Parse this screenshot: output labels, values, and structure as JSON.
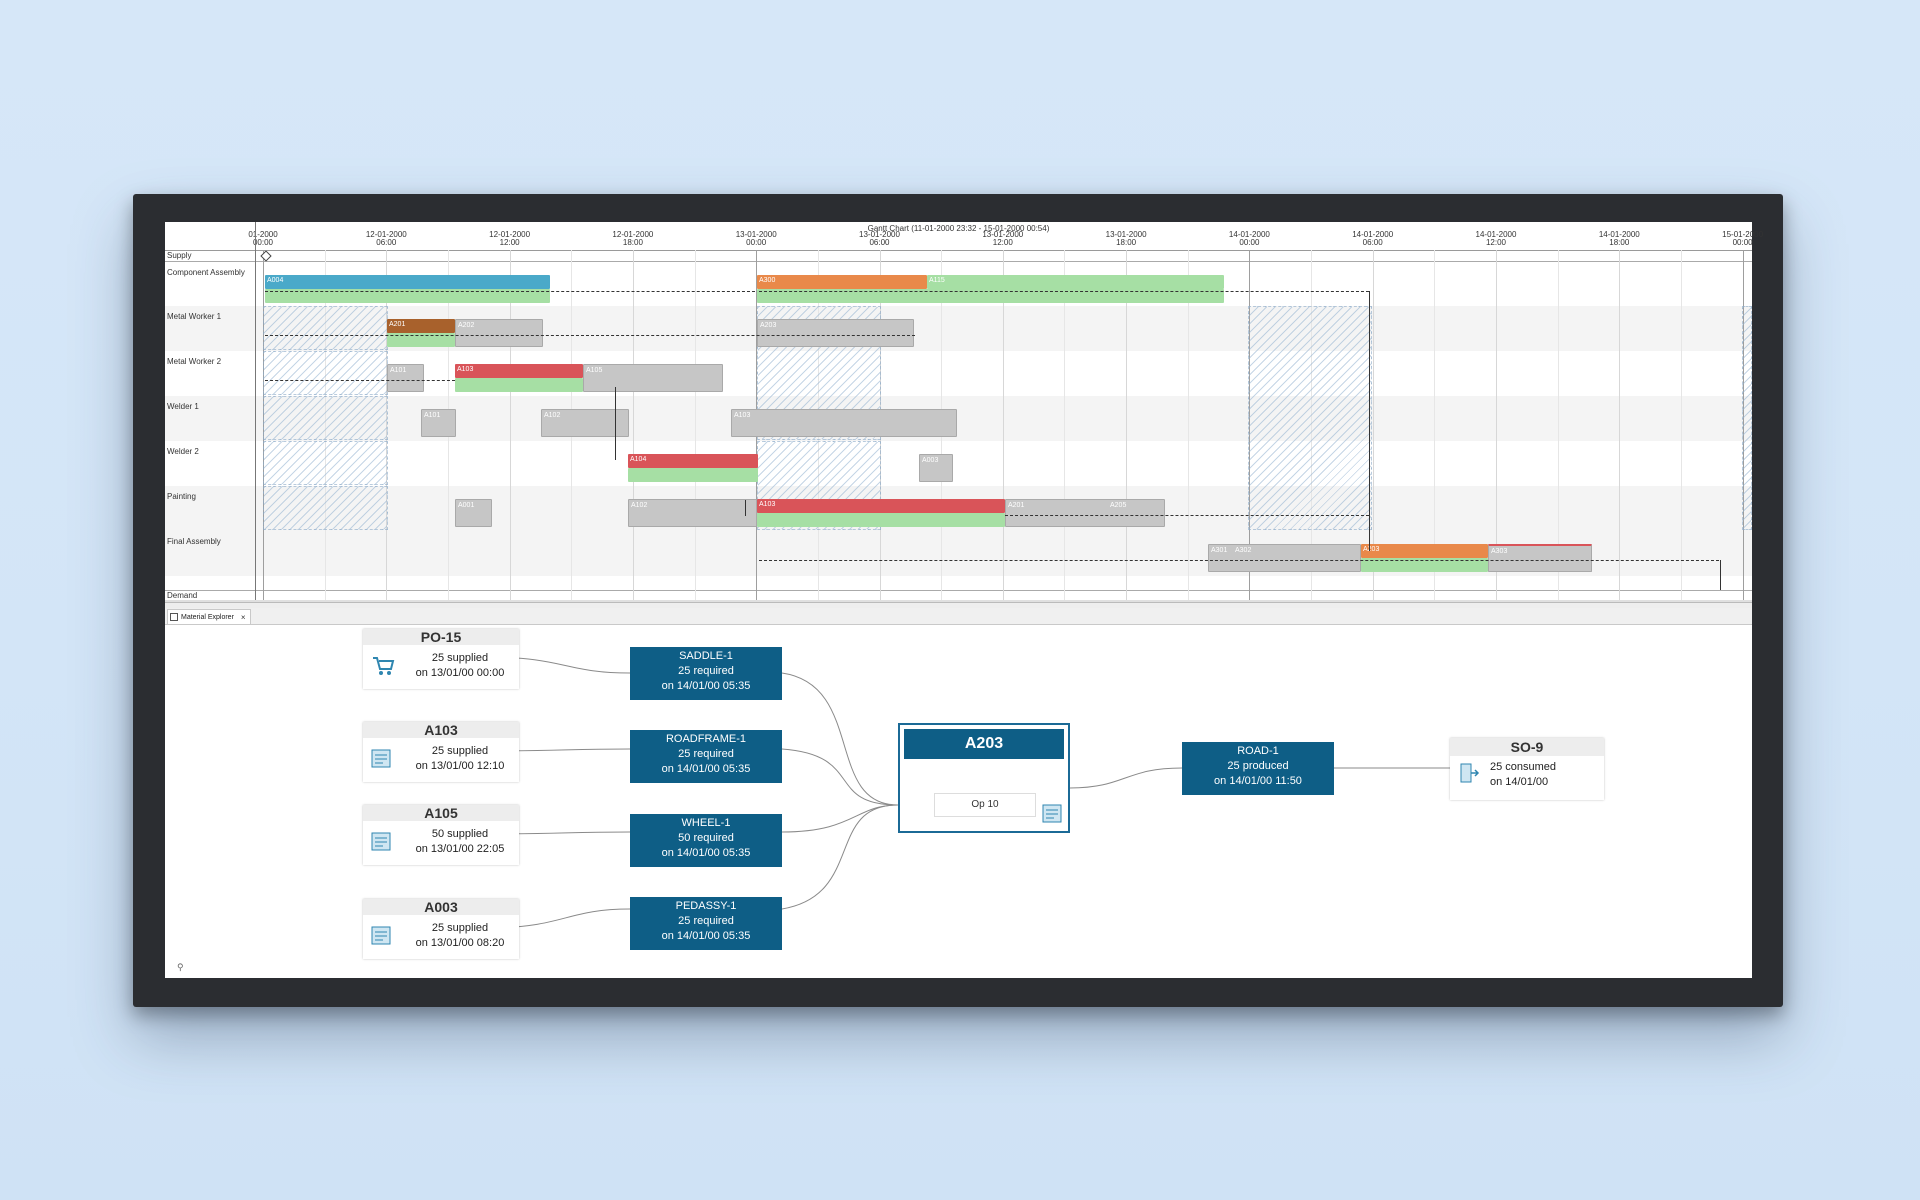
{
  "gantt": {
    "title": "Gantt Chart   (11-01-2000 23:32 - 15-01-2000 00:54)",
    "ticks": [
      {
        "d": "01-2000",
        "t": "00:00"
      },
      {
        "d": "12-01-2000",
        "t": "06:00"
      },
      {
        "d": "12-01-2000",
        "t": "12:00"
      },
      {
        "d": "12-01-2000",
        "t": "18:00"
      },
      {
        "d": "13-01-2000",
        "t": "00:00"
      },
      {
        "d": "13-01-2000",
        "t": "06:00"
      },
      {
        "d": "13-01-2000",
        "t": "12:00"
      },
      {
        "d": "13-01-2000",
        "t": "18:00"
      },
      {
        "d": "14-01-2000",
        "t": "00:00"
      },
      {
        "d": "14-01-2000",
        "t": "06:00"
      },
      {
        "d": "14-01-2000",
        "t": "12:00"
      },
      {
        "d": "14-01-2000",
        "t": "18:00"
      },
      {
        "d": "15-01-2000",
        "t": "00:00"
      }
    ],
    "rows": {
      "supply": "Supply",
      "component_assembly": "Component Assembly",
      "metal_worker_1": "Metal Worker 1",
      "metal_worker_2": "Metal Worker 2",
      "welder_1": "Welder 1",
      "welder_2": "Welder 2",
      "painting": "Painting",
      "final_assembly": "Final Assembly",
      "demand": "Demand"
    },
    "bar_labels": {
      "a004": "A004",
      "a300": "A300",
      "a115": "A115",
      "a201": "A201",
      "a202": "A202",
      "a203_mw1": "A203",
      "a101_mw2": "A101",
      "a103_mw2": "A103",
      "a105_mw2": "A105",
      "a101_w1": "A101",
      "a102_w1": "A102",
      "a103_w1": "A103",
      "a104_w2": "A104",
      "a003_w2": "A003",
      "a001_p": "A001",
      "a102_p": "A102",
      "a103_p": "A103",
      "a201_p": "A201",
      "a205_p": "A205",
      "a301_fa": "A301",
      "a302_fa": "A302",
      "a203_fa": "A203",
      "a303_fa": "A303"
    },
    "colors": {
      "blue": "#4aa9c9",
      "orange": "#e9894a",
      "red": "#d95459",
      "green": "#a6dfa4",
      "gray": "#c6c6c6",
      "brown": "#a8612c"
    }
  },
  "explorer": {
    "tab_label": "Material Explorer",
    "tab_close": "×",
    "sources": [
      {
        "title": "PO-15",
        "line1": "25 supplied",
        "line2": "on 13/01/00 00:00",
        "icon": "cart-icon"
      },
      {
        "title": "A103",
        "line1": "25 supplied",
        "line2": "on 13/01/00 12:10",
        "icon": "document-icon"
      },
      {
        "title": "A105",
        "line1": "50 supplied",
        "line2": "on 13/01/00 22:05",
        "icon": "document-icon"
      },
      {
        "title": "A003",
        "line1": "25 supplied",
        "line2": "on 13/01/00 08:20",
        "icon": "document-icon"
      }
    ],
    "requirements": [
      {
        "name": "SADDLE-1",
        "line1": "25 required",
        "line2": "on 14/01/00 05:35"
      },
      {
        "name": "ROADFRAME-1",
        "line1": "25 required",
        "line2": "on 14/01/00 05:35"
      },
      {
        "name": "WHEEL-1",
        "line1": "50 required",
        "line2": "on 14/01/00 05:35"
      },
      {
        "name": "PEDASSY-1",
        "line1": "25 required",
        "line2": "on 14/01/00 05:35"
      }
    ],
    "operation": {
      "title": "A203",
      "op": "Op 10"
    },
    "product": {
      "name": "ROAD-1",
      "line1": "25 produced",
      "line2": "on 14/01/00 11:50"
    },
    "sales_order": {
      "title": "SO-9",
      "line1": "25 consumed",
      "line2": "on 14/01/00"
    },
    "colors": {
      "node_blue": "#0e5e86",
      "header_gray": "#ededed"
    }
  }
}
